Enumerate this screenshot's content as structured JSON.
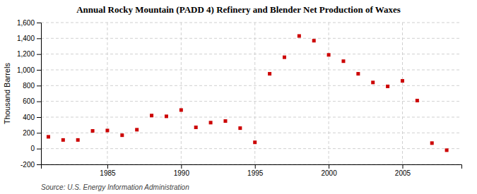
{
  "chart_data": {
    "type": "scatter",
    "title": "Annual Rocky Mountain (PADD 4) Refinery and Blender Net Production of Waxes",
    "y_label": "Thousand Barrels",
    "annotation": "Source: U.S. Energy Information Administration",
    "x": [
      1981,
      1982,
      1983,
      1984,
      1985,
      1986,
      1987,
      1988,
      1989,
      1990,
      1991,
      1992,
      1993,
      1994,
      1995,
      1996,
      1997,
      1998,
      1999,
      2000,
      2001,
      2002,
      2003,
      2004,
      2005,
      2006,
      2007,
      2008
    ],
    "values": [
      150,
      110,
      110,
      225,
      230,
      170,
      240,
      420,
      410,
      490,
      270,
      330,
      350,
      260,
      80,
      950,
      1160,
      1430,
      1370,
      1190,
      1110,
      950,
      840,
      790,
      860,
      610,
      70,
      -20
    ],
    "color": "#cc0000",
    "marker": "square",
    "xlim": [
      1980.5,
      2009
    ],
    "ylim": [
      -200,
      1600
    ],
    "xticks": [
      1985,
      1990,
      1995,
      2000,
      2005
    ],
    "yticks": [
      -200,
      0,
      200,
      400,
      600,
      800,
      {
        "value": 1000,
        "label": "1,000"
      },
      {
        "value": 1200,
        "label": "1,200"
      },
      {
        "value": 1400,
        "label": "1,400"
      },
      {
        "value": 1600,
        "label": "1,600"
      }
    ],
    "grid": true
  }
}
